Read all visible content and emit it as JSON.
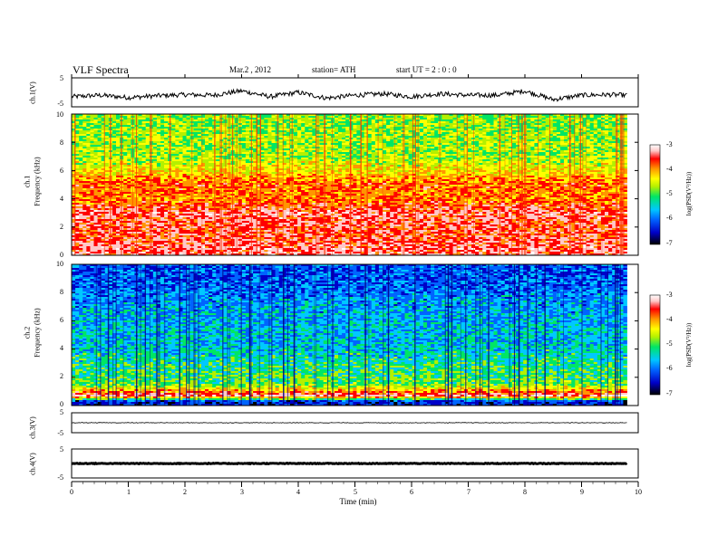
{
  "header": {
    "title": "VLF  Spectra",
    "date": "Mar.2   , 2012",
    "station": "station= ATH",
    "start": "start  UT  =    2  : 0  : 0"
  },
  "colors": {
    "spectrogram_scale": [
      "#000000",
      "#0000c8",
      "#0064ff",
      "#00c8ff",
      "#00e664",
      "#b4f000",
      "#ffff00",
      "#ff9600",
      "#ff0000",
      "#ffc8c8",
      "#ffffff"
    ],
    "trace": "#000000"
  },
  "chart_data": [
    {
      "type": "line",
      "name": "ch1-waveform",
      "ylabel": "ch.1(V)",
      "ylim": [
        -5,
        5
      ],
      "yticks": [
        "5",
        "-5"
      ],
      "x": [
        0,
        0.5,
        1,
        1.5,
        2,
        2.5,
        3,
        3.5,
        4,
        4.5,
        5,
        5.5,
        6,
        6.5,
        7,
        7.5,
        8,
        8.5,
        9,
        9.5,
        9.8
      ],
      "y": [
        -1.5,
        -1.0,
        -1.8,
        -1.2,
        -0.8,
        -1.0,
        0.5,
        -1.5,
        0.0,
        -2.0,
        -1.0,
        -0.5,
        -1.5,
        -0.5,
        -1.0,
        -1.0,
        0.5,
        -2.5,
        -1.0,
        -0.8,
        -1.0
      ]
    },
    {
      "type": "heatmap",
      "name": "ch1-spectrogram",
      "ylabel_top": "ch.1",
      "ylabel": "Frequency  (kHz)",
      "ylim": [
        0,
        10
      ],
      "yticks": [
        "0",
        "2",
        "4",
        "6",
        "8",
        "10"
      ],
      "colorbar_label": "log(PSD(V²/Hz))",
      "colorbar_ticks": [
        "-3",
        "-4",
        "-5",
        "-6",
        "-7"
      ],
      "clim": [
        -7,
        -3
      ],
      "freq_khz": [
        0.5,
        1.5,
        2.5,
        3.0,
        4.0,
        5.0,
        6.0,
        7.0,
        8.0,
        9.0,
        9.8
      ],
      "log_psd": [
        -3.6,
        -3.8,
        -3.7,
        -3.6,
        -4.2,
        -4.0,
        -4.6,
        -5.0,
        -5.0,
        -5.1,
        -5.1
      ]
    },
    {
      "type": "heatmap",
      "name": "ch2-spectrogram",
      "ylabel_top": "ch.2",
      "ylabel": "Frequency  (kHz)",
      "ylim": [
        0,
        10
      ],
      "yticks": [
        "0",
        "2",
        "4",
        "6",
        "8",
        "10"
      ],
      "colorbar_label": "log(PSD(V²/Hz))",
      "colorbar_ticks": [
        "-3",
        "-4",
        "-5",
        "-6",
        "-7"
      ],
      "clim": [
        -7,
        -3
      ],
      "freq_khz": [
        0.3,
        0.7,
        1.5,
        2.5,
        3.5,
        4.5,
        5.5,
        6.5,
        7.5,
        8.5,
        9.5
      ],
      "log_psd": [
        -6.5,
        -3.5,
        -5.2,
        -5.4,
        -5.6,
        -5.8,
        -5.8,
        -5.9,
        -6.0,
        -6.2,
        -6.3
      ]
    },
    {
      "type": "line",
      "name": "ch3-waveform",
      "ylabel": "ch.3(V)",
      "ylim": [
        -5,
        5
      ],
      "yticks": [
        "5",
        "-5"
      ],
      "x": [
        0,
        9.8
      ],
      "y": [
        0,
        0
      ]
    },
    {
      "type": "line",
      "name": "ch4-waveform",
      "ylabel": "ch.4(V)",
      "ylim": [
        -5,
        5
      ],
      "yticks": [
        "5",
        "-5"
      ],
      "x": [
        0,
        9.8
      ],
      "y": [
        0,
        0
      ]
    }
  ],
  "x_axis": {
    "label": "Time  (min)",
    "xlim": [
      0,
      10
    ],
    "ticks": [
      "0",
      "1",
      "2",
      "3",
      "4",
      "5",
      "6",
      "7",
      "8",
      "9",
      "10"
    ]
  }
}
